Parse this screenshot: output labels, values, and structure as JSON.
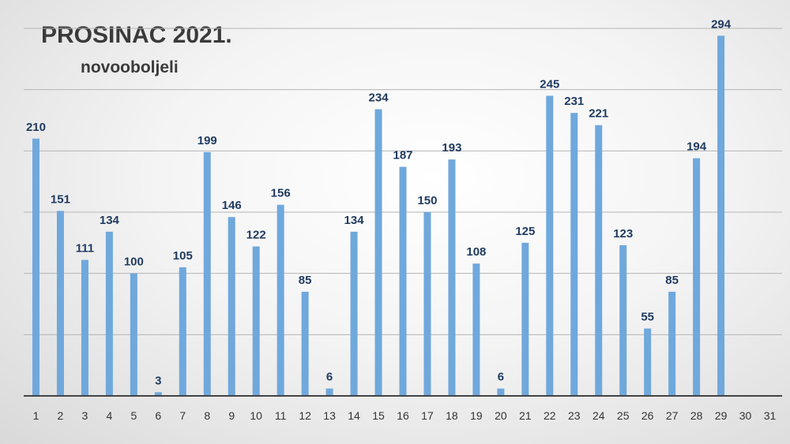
{
  "chart_data": {
    "type": "bar",
    "title": "PROSINAC 2021.",
    "subtitle": "novooboljeli",
    "xlabel": "",
    "ylabel": "",
    "ylim": [
      0,
      300
    ],
    "grid": true,
    "show_y_ticks": false,
    "color": "#6fa8dc",
    "categories": [
      "1",
      "2",
      "3",
      "4",
      "5",
      "6",
      "7",
      "8",
      "9",
      "10",
      "11",
      "12",
      "13",
      "14",
      "15",
      "16",
      "17",
      "18",
      "19",
      "20",
      "21",
      "22",
      "23",
      "24",
      "25",
      "26",
      "27",
      "28",
      "29",
      "30",
      "31"
    ],
    "values": [
      210,
      151,
      111,
      134,
      100,
      3,
      105,
      199,
      146,
      122,
      156,
      85,
      6,
      134,
      234,
      187,
      150,
      193,
      108,
      6,
      125,
      245,
      231,
      221,
      123,
      55,
      85,
      194,
      294,
      null,
      null
    ]
  }
}
